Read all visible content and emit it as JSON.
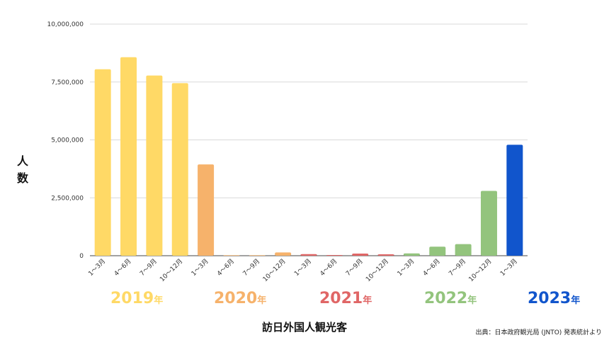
{
  "chart_data": {
    "type": "bar",
    "ylabel": "人数",
    "xlabel": "訪日外国人観光客",
    "source": "出典：日本政府観光局 (JNTO) 発表統計より",
    "ylim": [
      0,
      10000000
    ],
    "yticks": [
      0,
      2500000,
      5000000,
      7500000,
      10000000
    ],
    "ytick_labels": [
      "0",
      "2,500,000",
      "5,000,000",
      "7,500,000",
      "10,000,000"
    ],
    "grid": true,
    "categories": [
      "1～3月",
      "4～6月",
      "7～9月",
      "10～12月",
      "1～3月",
      "4～6月",
      "7～9月",
      "10～12月",
      "1～3月",
      "4～6月",
      "7～9月",
      "10～12月",
      "1～3月",
      "4～6月",
      "7～9月",
      "10～12月",
      "1～3月"
    ],
    "values": [
      8050000,
      8570000,
      7780000,
      7450000,
      3940000,
      4000,
      16000,
      140000,
      67000,
      30000,
      90000,
      60000,
      100000,
      390000,
      500000,
      2800000,
      4790000
    ],
    "bar_colors": [
      "#FFD966",
      "#FFD966",
      "#FFD966",
      "#FFD966",
      "#F6B26B",
      "#F6B26B",
      "#F6B26B",
      "#F6B26B",
      "#E06666",
      "#E06666",
      "#E06666",
      "#E06666",
      "#93C47D",
      "#93C47D",
      "#93C47D",
      "#93C47D",
      "#1155CC"
    ],
    "years": [
      {
        "label": "2019",
        "suffix": "年",
        "color": "#FFD966"
      },
      {
        "label": "2020",
        "suffix": "年",
        "color": "#F6B26B"
      },
      {
        "label": "2021",
        "suffix": "年",
        "color": "#E06666"
      },
      {
        "label": "2022",
        "suffix": "年",
        "color": "#93C47D"
      },
      {
        "label": "2023",
        "suffix": "年",
        "color": "#1155CC"
      }
    ]
  }
}
